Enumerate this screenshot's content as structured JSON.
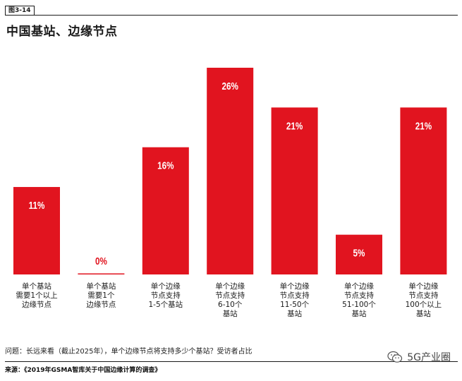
{
  "figure_tag": "图3-14",
  "chart_data": {
    "type": "bar",
    "title": "中国基站、边缘节点",
    "categories": [
      [
        "单个基站",
        "需要1个以上",
        "边缘节点"
      ],
      [
        "单个基站",
        "需要1个",
        "边缘节点"
      ],
      [
        "单个边缘",
        "节点支持",
        "1-5个基站"
      ],
      [
        "单个边缘",
        "节点支持",
        "6-10个",
        "基站"
      ],
      [
        "单个边缘",
        "节点支持",
        "11-50个",
        "基站"
      ],
      [
        "单个边缘",
        "节点支持",
        "51-100个",
        "基站"
      ],
      [
        "单个边缘",
        "节点支持",
        "100个以上",
        "基站"
      ]
    ],
    "values": [
      11,
      0,
      16,
      26,
      21,
      5,
      21
    ],
    "value_labels": [
      "11%",
      "0%",
      "16%",
      "26%",
      "21%",
      "5%",
      "21%"
    ],
    "unit": "%",
    "ylim": [
      0,
      26
    ],
    "grid": false,
    "bar_color": "#e1141f"
  },
  "note": "问题：长远来看（截止2025年），单个边缘节点将支持多少个基站？受访者占比",
  "source": "来源：《2019年GSMA智库关于中国边缘计算的调查》",
  "watermark": {
    "text": "5G产业圈",
    "icon": "wechat-icon"
  }
}
